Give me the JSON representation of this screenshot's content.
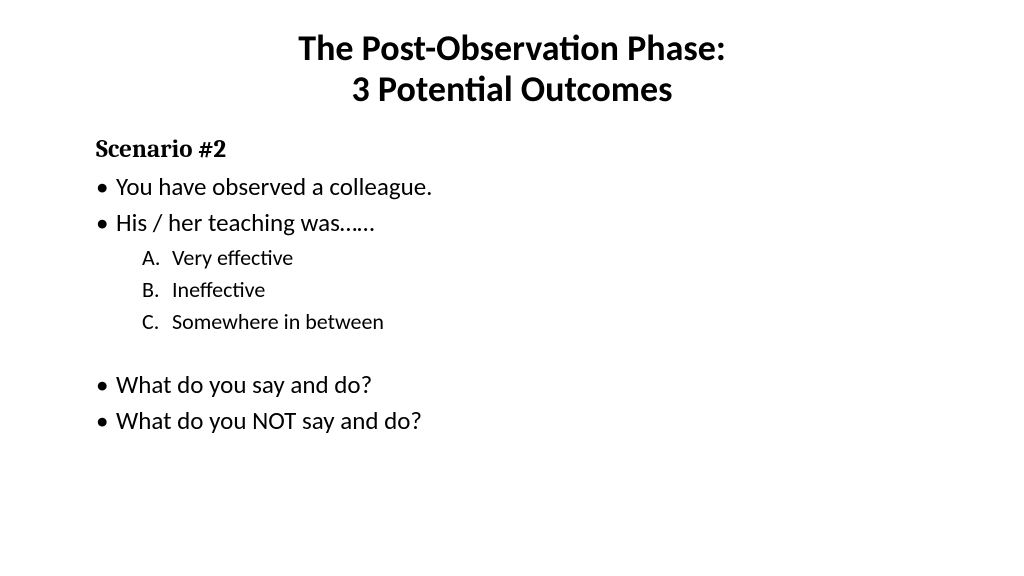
{
  "title": {
    "line1": "The Post-Observation Phase:",
    "line2": "3 Potential Outcomes",
    "fontsize": 36,
    "fontweight": 700,
    "color": "#000000"
  },
  "subtitle": {
    "text": "Scenario #2",
    "fontsize": 25,
    "fontweight": 700
  },
  "body": {
    "fontsize": 25,
    "sub_fontsize": 22,
    "color": "#000000",
    "bullets": [
      {
        "text": "You have observed a colleague."
      },
      {
        "text": "His / her teaching was……",
        "sub": [
          {
            "marker": "A.",
            "text": "Very effective"
          },
          {
            "marker": "B.",
            "text": "Ineffective"
          },
          {
            "marker": "C.",
            "text": "Somewhere in between"
          }
        ]
      },
      {
        "text": "What do you say and do?"
      },
      {
        "text": "What do you NOT say and do?"
      }
    ]
  },
  "background_color": "#ffffff"
}
